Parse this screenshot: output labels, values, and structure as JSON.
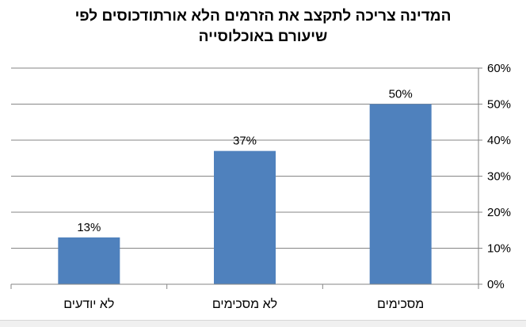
{
  "chart_data": {
    "type": "bar",
    "title_lines": [
      "המדינה צריכה לתקצב את הזרמים הלא אורתודכוסים לפי",
      "שיעורם באוכלוסייה"
    ],
    "categories": [
      "לא יודעים",
      "לא מסכימים",
      "מסכימים"
    ],
    "values": [
      13,
      37,
      50
    ],
    "data_labels": [
      "13%",
      "37%",
      "50%"
    ],
    "y_ticks": [
      "0%",
      "10%",
      "20%",
      "30%",
      "40%",
      "50%",
      "60%"
    ],
    "ylim": [
      0,
      60
    ],
    "y_axis_side": "right",
    "grid": true,
    "legend": "none",
    "xlabel": "",
    "ylabel": "",
    "colors": {
      "bar": "#4f81bd",
      "grid": "#868686",
      "axis": "#868686"
    }
  }
}
